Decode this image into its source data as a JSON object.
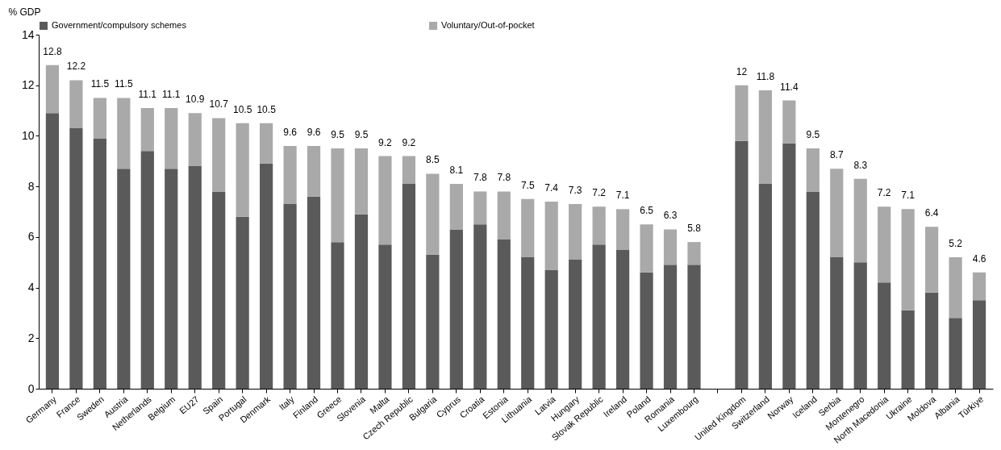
{
  "chart_data": {
    "type": "bar",
    "stacked": true,
    "ylabel": "% GDP",
    "legend": "top",
    "grid": false,
    "categories": [
      "Germany",
      "France",
      "Sweden",
      "Austria",
      "Netherlands",
      "Belgium",
      "EU27",
      "Spain",
      "Portugal",
      "Denmark",
      "Italy",
      "Finland",
      "Greece",
      "Slovenia",
      "Malta",
      "Czech Republic",
      "Bulgaria",
      "Cyprus",
      "Croatia",
      "Estonia",
      "Lithuania",
      "Latvia",
      "Hungary",
      "Slovak Republic",
      "Ireland",
      "Poland",
      "Romania",
      "Luxembourg",
      null,
      "United Kingdom",
      "Switzerland",
      "Norway",
      "Iceland",
      "Serbia",
      "Montenegro",
      "North Macedonia",
      "Ukraine",
      "Moldova",
      "Albania",
      "Türkiye"
    ],
    "series": [
      {
        "name": "Government/compulsory schemes",
        "color": "#5a5a5a",
        "values": [
          10.9,
          10.3,
          9.9,
          8.7,
          9.4,
          8.7,
          8.8,
          7.8,
          6.8,
          8.9,
          7.3,
          7.6,
          5.8,
          6.9,
          5.7,
          8.1,
          5.3,
          6.3,
          6.5,
          5.9,
          5.2,
          4.7,
          5.1,
          5.7,
          5.5,
          4.6,
          4.9,
          4.9,
          null,
          9.8,
          8.1,
          9.7,
          7.8,
          5.2,
          5.0,
          4.2,
          3.1,
          3.8,
          2.8,
          3.5
        ]
      },
      {
        "name": "Voluntary/Out-of-pocket",
        "color": "#a9a9a9",
        "values": [
          1.9,
          1.9,
          1.6,
          2.8,
          1.7,
          2.4,
          2.1,
          2.9,
          3.7,
          1.6,
          2.3,
          2.0,
          3.7,
          2.6,
          3.5,
          1.1,
          3.2,
          1.8,
          1.3,
          1.9,
          2.3,
          2.7,
          2.2,
          1.5,
          1.6,
          1.9,
          1.4,
          0.9,
          null,
          2.2,
          3.7,
          1.7,
          1.7,
          3.5,
          3.3,
          3.0,
          4.0,
          2.6,
          2.4,
          1.1
        ]
      }
    ],
    "totals": [
      "12.8",
      "12.2",
      "11.5",
      "11.5",
      "11.1",
      "11.1",
      "10.9",
      "10.7",
      "10.5",
      "10.5",
      "9.6",
      "9.6",
      "9.5",
      "9.5",
      "9.2",
      "9.2",
      "8.5",
      "8.1",
      "7.8",
      "7.8",
      "7.5",
      "7.4",
      "7.3",
      "7.2",
      "7.1",
      "6.5",
      "6.3",
      "5.8",
      null,
      "12",
      "11.8",
      "11.4",
      "9.5",
      "8.7",
      "8.3",
      "7.2",
      "7.1",
      "6.4",
      "5.2",
      "4.6"
    ],
    "ylim": [
      0,
      14
    ],
    "yticks": [
      0,
      2,
      4,
      6,
      8,
      10,
      12,
      14
    ]
  }
}
